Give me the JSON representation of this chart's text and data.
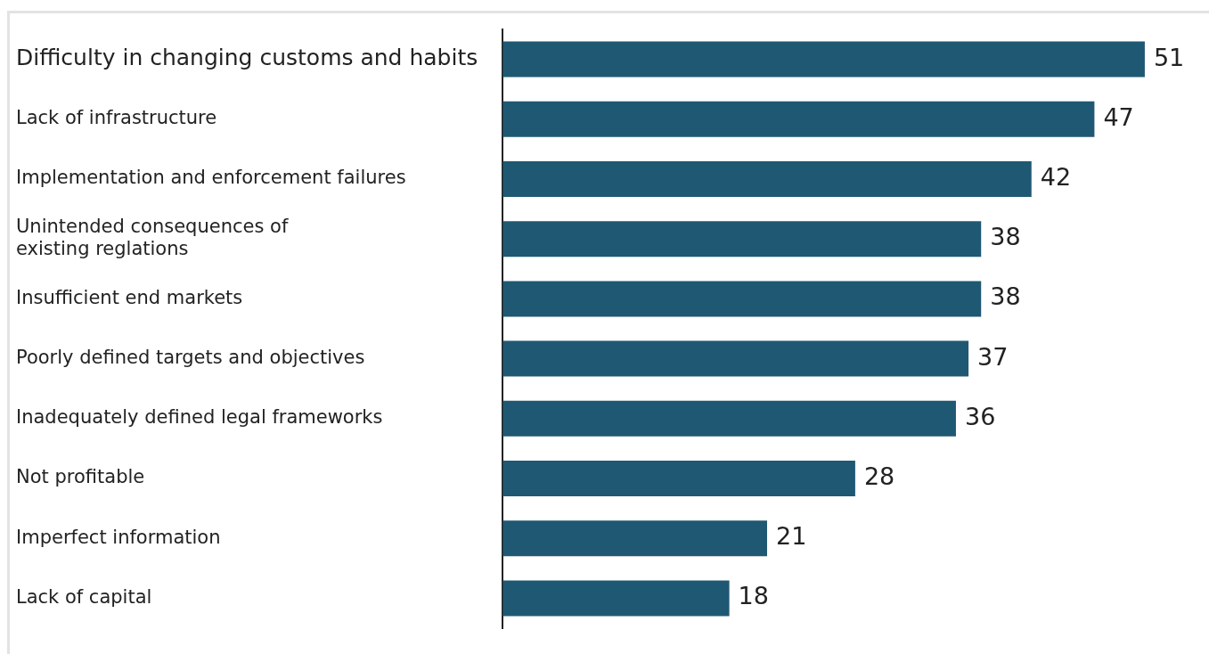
{
  "chart_data": {
    "type": "bar",
    "orientation": "horizontal",
    "categories": [
      "Difficulty in changing customs and habits",
      "Lack of infrastructure",
      "Implementation and enforcement failures",
      "Unintended consequences of\nexisting reglations",
      "Insufficient end markets",
      "Poorly defined targets and objectives",
      "Inadequately defined legal frameworks",
      "Not profitable",
      "Imperfect information",
      "Lack of capital"
    ],
    "values": [
      51,
      47,
      42,
      38,
      38,
      37,
      36,
      28,
      21,
      18
    ],
    "color": "#1f5872",
    "data_labels": true,
    "legend": false
  }
}
